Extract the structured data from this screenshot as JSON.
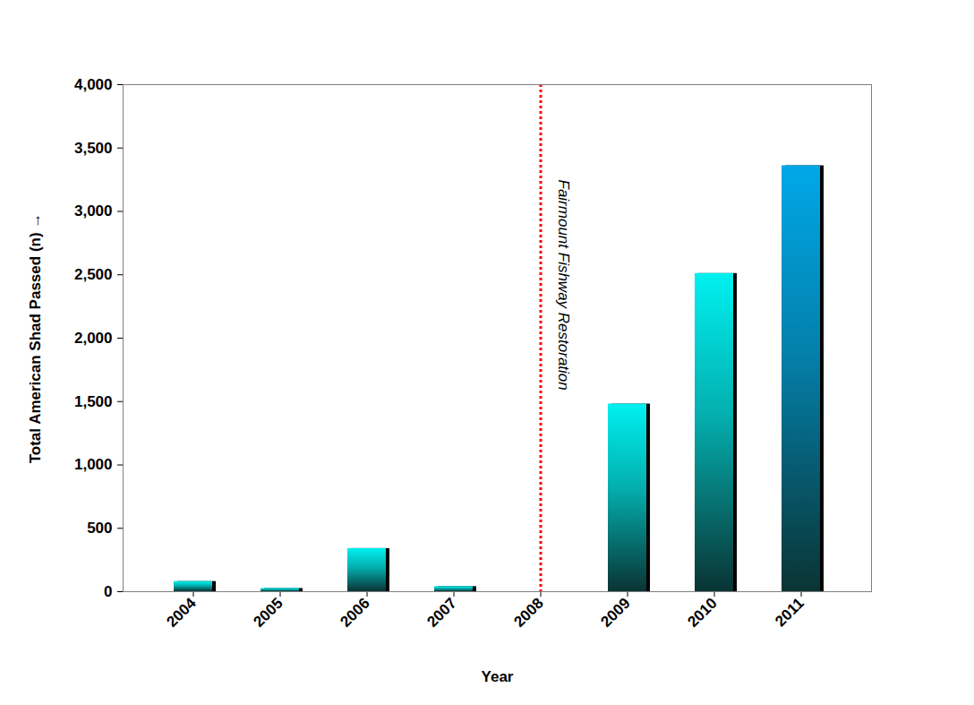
{
  "chart_data": {
    "type": "bar",
    "categories": [
      "2004",
      "2005",
      "2006",
      "2007",
      "2008",
      "2009",
      "2010",
      "2011"
    ],
    "values": [
      80,
      25,
      340,
      40,
      0,
      1480,
      2510,
      3360
    ],
    "colors": [
      "#00f0f0",
      "#00f0f0",
      "#00f0f0",
      "#00f0f0",
      "#00f0f0",
      "#00f0f0",
      "#00f0f0",
      "#00a8e8"
    ],
    "x_label": "Year",
    "y_label": "Total American Shad Passed (n)",
    "ylim": [
      0,
      4000
    ],
    "yticks": [
      0,
      500,
      1000,
      1500,
      2000,
      2500,
      3000,
      3500,
      4000
    ],
    "grid": false,
    "annotations": [
      {
        "text": "Fairmount Fishway Restoration",
        "x": "2008",
        "color": "#ff0000",
        "line_style": "dotted"
      }
    ]
  }
}
